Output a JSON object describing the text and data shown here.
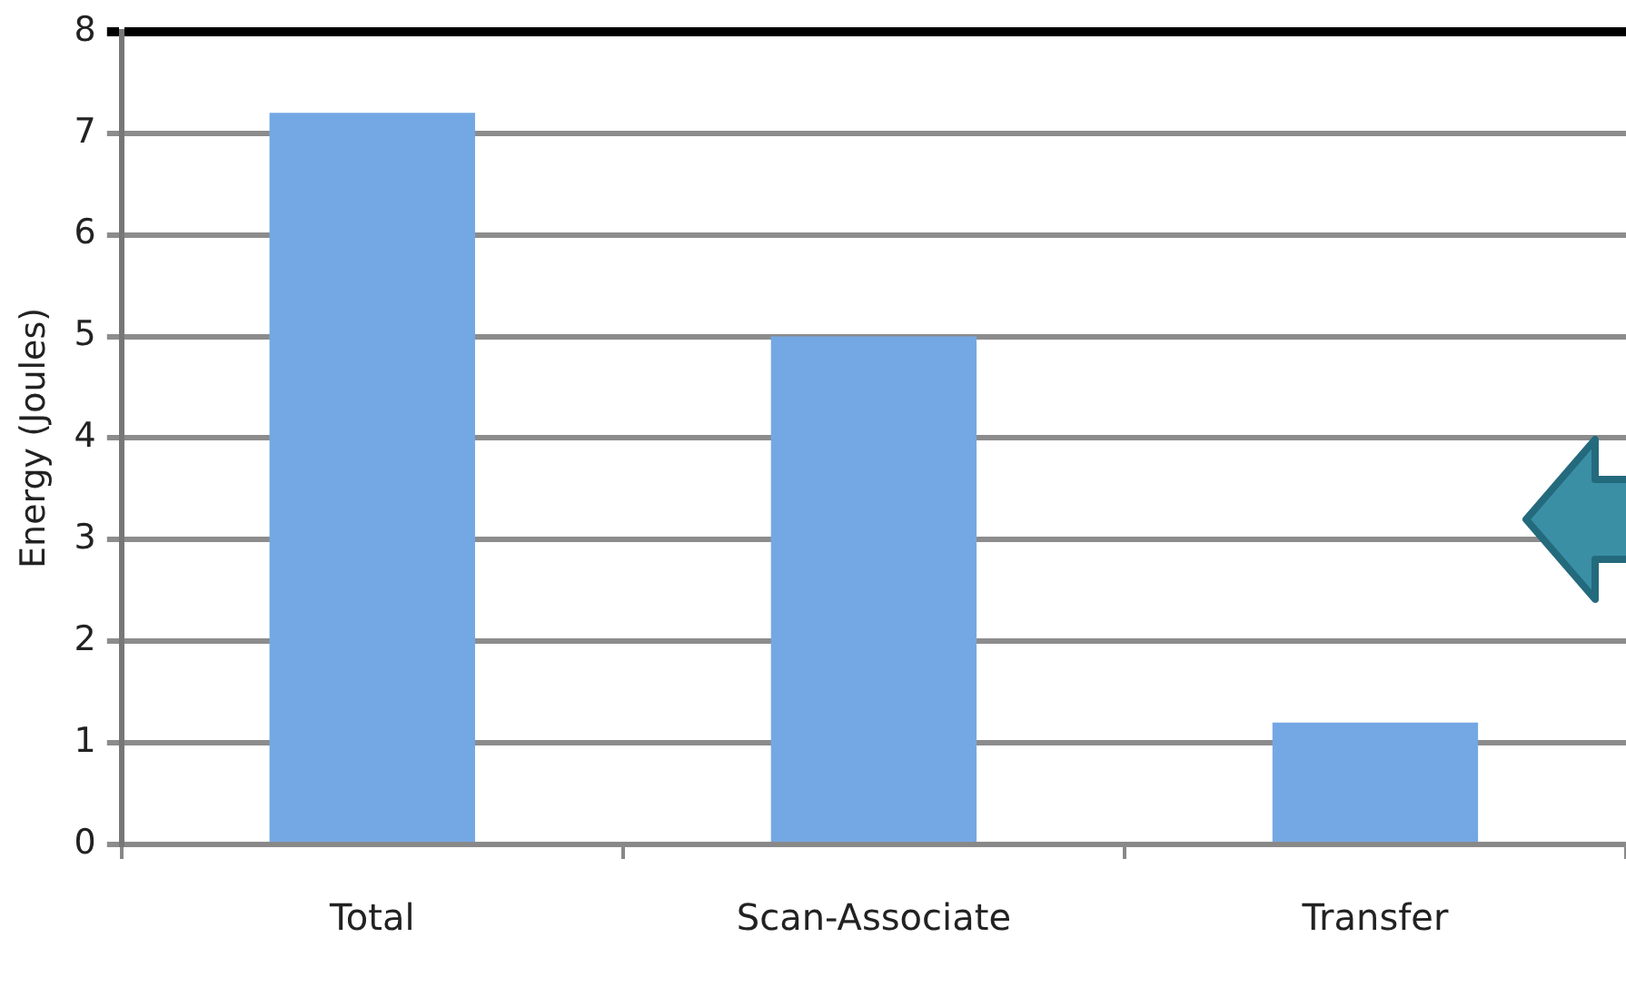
{
  "chart_data": {
    "type": "bar",
    "ylabel": "Energy (Joules)",
    "categories": [
      "Total",
      "Scan-Associate",
      "Transfer"
    ],
    "values": [
      7.2,
      5.0,
      1.2
    ],
    "color": "#74a8e4",
    "ylim": [
      0,
      8
    ],
    "yticks": [
      0,
      1,
      2,
      3,
      4,
      5,
      6,
      7,
      8
    ],
    "grid": "y"
  }
}
